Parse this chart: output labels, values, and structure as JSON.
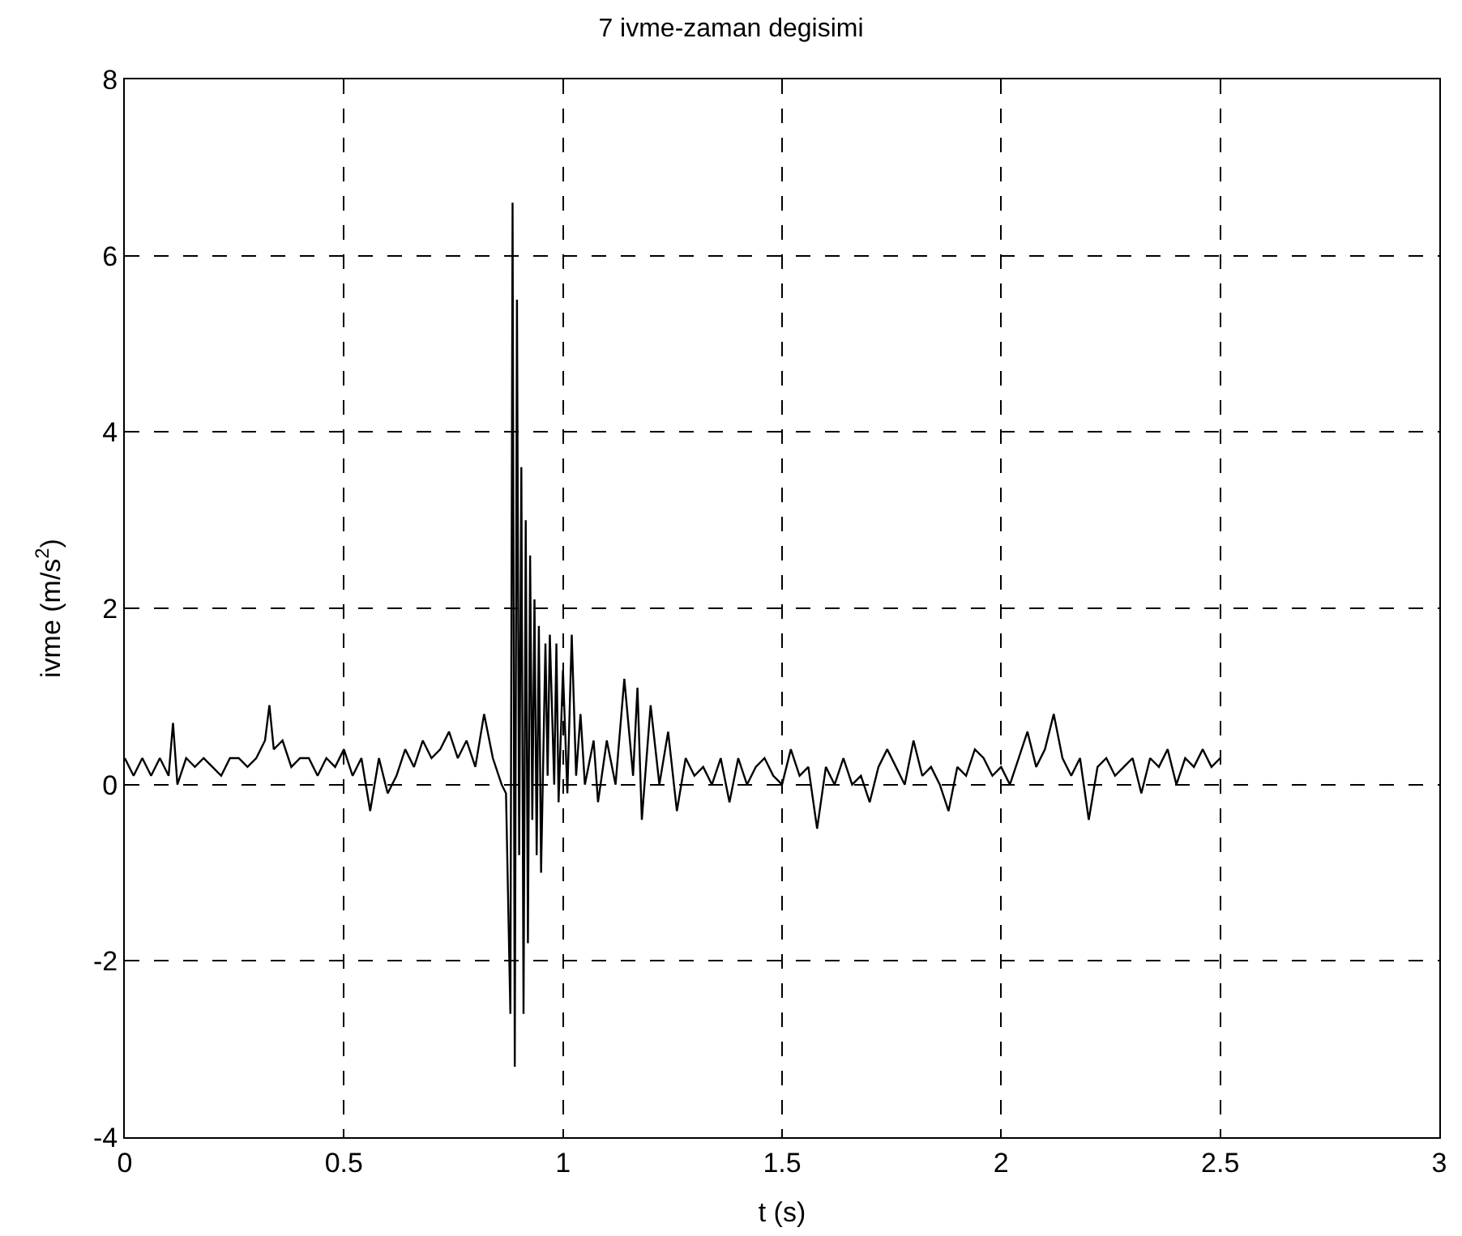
{
  "chart_data": {
    "type": "line",
    "title": "7 ivme-zaman degisimi",
    "xlabel": "t (s)",
    "ylabel": "ivme (m/s$^{2}$)",
    "xlim": [
      0,
      3
    ],
    "ylim": [
      -4,
      8
    ],
    "xticks": [
      0,
      0.5,
      1,
      1.5,
      2,
      2.5,
      3
    ],
    "yticks": [
      -4,
      -2,
      0,
      2,
      4,
      6,
      8
    ],
    "grid": true,
    "legend": false,
    "series": [
      {
        "color": "#000000",
        "x": [
          0,
          0.02,
          0.04,
          0.06,
          0.08,
          0.1,
          0.11,
          0.12,
          0.14,
          0.16,
          0.18,
          0.2,
          0.22,
          0.24,
          0.26,
          0.28,
          0.3,
          0.32,
          0.33,
          0.34,
          0.36,
          0.38,
          0.4,
          0.42,
          0.44,
          0.46,
          0.48,
          0.5,
          0.52,
          0.54,
          0.56,
          0.58,
          0.6,
          0.62,
          0.64,
          0.66,
          0.68,
          0.7,
          0.72,
          0.74,
          0.76,
          0.78,
          0.8,
          0.82,
          0.84,
          0.86,
          0.87,
          0.88,
          0.885,
          0.89,
          0.895,
          0.9,
          0.905,
          0.91,
          0.915,
          0.92,
          0.925,
          0.93,
          0.935,
          0.94,
          0.945,
          0.95,
          0.96,
          0.965,
          0.97,
          0.98,
          0.985,
          0.99,
          1.0,
          1.01,
          1.02,
          1.03,
          1.04,
          1.05,
          1.07,
          1.08,
          1.1,
          1.12,
          1.14,
          1.16,
          1.17,
          1.18,
          1.2,
          1.22,
          1.24,
          1.26,
          1.28,
          1.3,
          1.32,
          1.34,
          1.36,
          1.38,
          1.4,
          1.42,
          1.44,
          1.46,
          1.48,
          1.5,
          1.52,
          1.54,
          1.56,
          1.58,
          1.6,
          1.62,
          1.64,
          1.66,
          1.68,
          1.7,
          1.72,
          1.74,
          1.76,
          1.78,
          1.8,
          1.82,
          1.84,
          1.86,
          1.88,
          1.9,
          1.92,
          1.94,
          1.96,
          1.98,
          2.0,
          2.02,
          2.04,
          2.06,
          2.08,
          2.1,
          2.12,
          2.14,
          2.16,
          2.18,
          2.2,
          2.22,
          2.24,
          2.26,
          2.28,
          2.3,
          2.32,
          2.34,
          2.36,
          2.38,
          2.4,
          2.42,
          2.44,
          2.46,
          2.48,
          2.5
        ],
        "values": [
          0.3,
          0.1,
          0.3,
          0.1,
          0.3,
          0.1,
          0.7,
          0.0,
          0.3,
          0.2,
          0.3,
          0.2,
          0.1,
          0.3,
          0.3,
          0.2,
          0.3,
          0.5,
          0.9,
          0.4,
          0.5,
          0.2,
          0.3,
          0.3,
          0.1,
          0.3,
          0.2,
          0.4,
          0.1,
          0.3,
          -0.3,
          0.3,
          -0.1,
          0.1,
          0.4,
          0.2,
          0.5,
          0.3,
          0.4,
          0.6,
          0.3,
          0.5,
          0.2,
          0.8,
          0.3,
          0.0,
          -0.1,
          -2.6,
          6.6,
          -3.2,
          5.5,
          -0.8,
          3.6,
          -2.6,
          3.0,
          -1.8,
          2.6,
          -0.4,
          2.1,
          -0.8,
          1.8,
          -1.0,
          1.6,
          0.1,
          1.7,
          0.0,
          1.6,
          -0.2,
          1.3,
          -0.1,
          1.7,
          0.1,
          0.8,
          0.0,
          0.5,
          -0.2,
          0.5,
          0.0,
          1.2,
          0.1,
          1.1,
          -0.4,
          0.9,
          0.0,
          0.6,
          -0.3,
          0.3,
          0.1,
          0.2,
          0.0,
          0.3,
          -0.2,
          0.3,
          0.0,
          0.2,
          0.3,
          0.1,
          0.0,
          0.4,
          0.1,
          0.2,
          -0.5,
          0.2,
          0.0,
          0.3,
          0.0,
          0.1,
          -0.2,
          0.2,
          0.4,
          0.2,
          0.0,
          0.5,
          0.1,
          0.2,
          0.0,
          -0.3,
          0.2,
          0.1,
          0.4,
          0.3,
          0.1,
          0.2,
          0.0,
          0.3,
          0.6,
          0.2,
          0.4,
          0.8,
          0.3,
          0.1,
          0.3,
          -0.4,
          0.2,
          0.3,
          0.1,
          0.2,
          0.3,
          -0.1,
          0.3,
          0.2,
          0.4,
          0.0,
          0.3,
          0.2,
          0.4,
          0.2,
          0.3
        ]
      }
    ]
  }
}
